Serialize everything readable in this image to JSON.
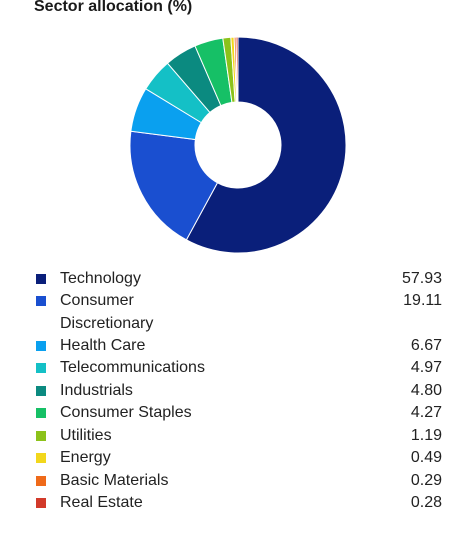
{
  "chart_data": {
    "type": "pie",
    "variant": "donut",
    "title": "Sector allocation (%)",
    "legend_position": "bottom",
    "categories": [
      "Technology",
      "Consumer Discretionary",
      "Health Care",
      "Telecommunications",
      "Industrials",
      "Consumer Staples",
      "Utilities",
      "Energy",
      "Basic Materials",
      "Real Estate"
    ],
    "values": [
      57.93,
      19.11,
      6.67,
      4.97,
      4.8,
      4.27,
      1.19,
      0.49,
      0.29,
      0.28
    ],
    "value_labels": [
      "57.93",
      "19.11",
      "6.67",
      "4.97",
      "4.80",
      "4.27",
      "1.19",
      "0.49",
      "0.29",
      "0.28"
    ],
    "colors": [
      "#0a1f7a",
      "#1a4fd0",
      "#0aa0ef",
      "#14c0c6",
      "#0b8a80",
      "#16c066",
      "#8cc21a",
      "#f2d71c",
      "#ef6a1a",
      "#d23a2a"
    ]
  }
}
